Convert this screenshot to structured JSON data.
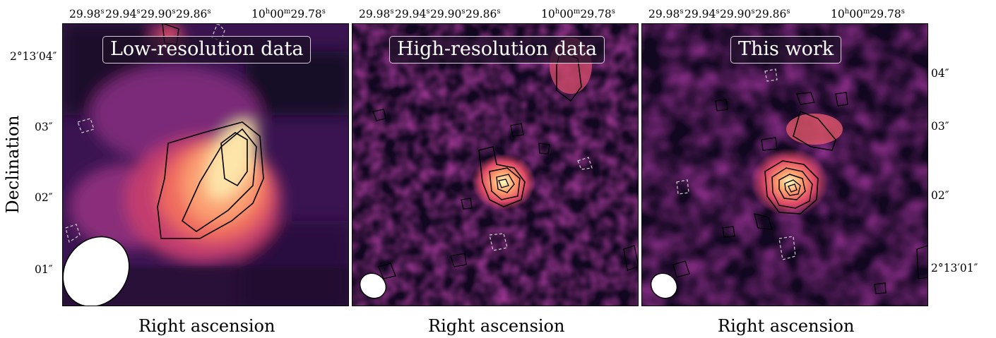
{
  "panels": [
    {
      "title": "Low-resolution data"
    },
    {
      "title": "High-resolution data"
    },
    {
      "title": "This work"
    }
  ],
  "x_ticks": {
    "t1": "29.98",
    "t2": "29.94",
    "t3": "29.90",
    "t4": "29.86",
    "t5_hours": "10",
    "t5_minutes": "00",
    "t5_seconds": "29.78",
    "unit_h": "h",
    "unit_m": "m",
    "unit_s": "s"
  },
  "left_y_ticks": [
    "2°13′04″",
    "03″",
    "02″",
    "01″"
  ],
  "right_y_ticks": [
    "04″",
    "03″",
    "02″",
    "2°13′01″"
  ],
  "xlabel": "Right ascension",
  "ylabel": "Declination",
  "colormap": {
    "low": "#000004",
    "mid1": "#3b0f70",
    "mid2": "#8c2981",
    "mid3": "#de4968",
    "mid4": "#fe9f6d",
    "high": "#fcfdbf"
  }
}
